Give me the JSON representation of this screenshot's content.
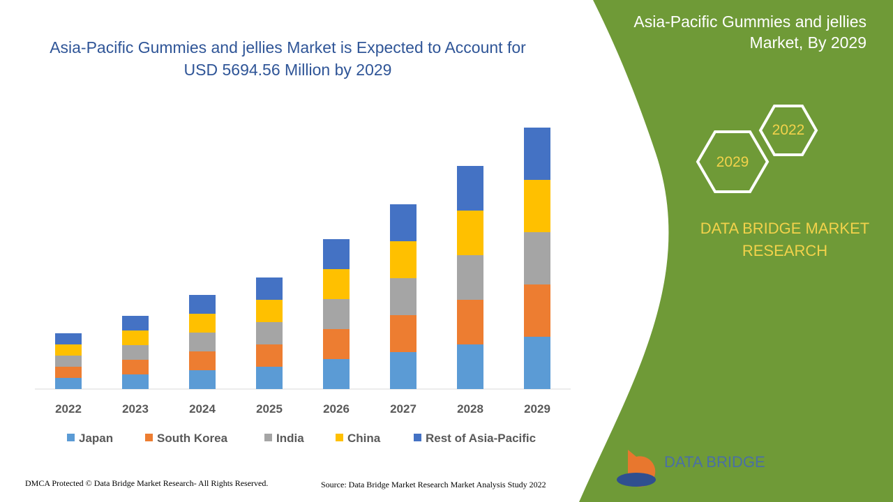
{
  "chart_data": {
    "type": "stacked_bar",
    "title": "Asia-Pacific Gummies and jellies Market is Expected to Account for USD 5694.56 Million by 2029",
    "categories": [
      "2022",
      "2023",
      "2024",
      "2025",
      "2026",
      "2027",
      "2028",
      "2029"
    ],
    "series": [
      {
        "name": "Japan",
        "color": "#5b9bd5",
        "values": [
          16,
          21,
          27,
          32,
          43,
          53,
          64,
          75
        ]
      },
      {
        "name": "South Korea",
        "color": "#ed7d31",
        "values": [
          16,
          21,
          27,
          32,
          43,
          53,
          64,
          75
        ]
      },
      {
        "name": "India",
        "color": "#a5a5a5",
        "values": [
          16,
          21,
          27,
          32,
          43,
          53,
          64,
          75
        ]
      },
      {
        "name": "China",
        "color": "#ffc000",
        "values": [
          16,
          21,
          27,
          32,
          43,
          53,
          64,
          75
        ]
      },
      {
        "name": "Rest of Asia-Pacific",
        "color": "#4472c4",
        "values": [
          16,
          21,
          27,
          32,
          43,
          53,
          64,
          75
        ]
      }
    ],
    "ylim": [
      0,
      400
    ],
    "legend": "bottom"
  },
  "side_panel": {
    "title": "Asia-Pacific Gummies and jellies Market, By 2029",
    "hex_top": "2022",
    "hex_bottom": "2029",
    "brand": "DATA BRIDGE MARKET RESEARCH",
    "logo": "DATA BRIDGE"
  },
  "footer": {
    "left": "DMCA Protected © Data Bridge Market Research- All Rights Reserved.",
    "right": "Source: Data Bridge Market Research Market Analysis Study 2022"
  }
}
